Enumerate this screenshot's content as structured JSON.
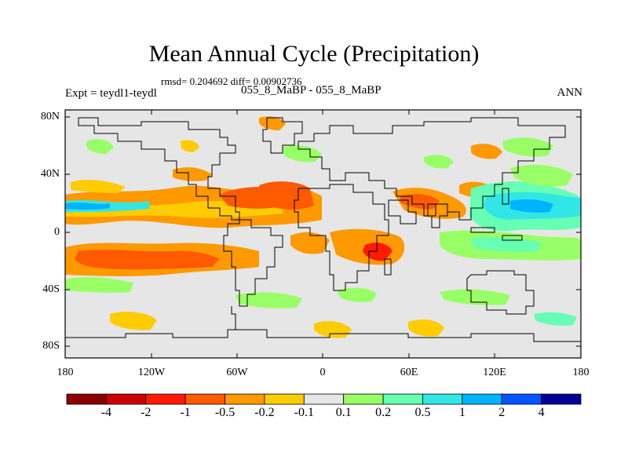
{
  "title": "Mean Annual Cycle (Precipitation)",
  "stats": "rmsd= 0.204692 diff= 0.00902736",
  "subtitle": "055_8_MaBP - 055_8_MaBP",
  "experiment": "Expt = teydl1-teydl",
  "season": "ANN",
  "map": {
    "lat_ticks": [
      "80N",
      "40N",
      "0",
      "40S",
      "80S"
    ],
    "lon_ticks": [
      "180",
      "120W",
      "60W",
      "0",
      "60E",
      "120E",
      "180"
    ]
  },
  "colorbar": {
    "labels": [
      "-4",
      "-2",
      "-1",
      "-0.5",
      "-0.2",
      "-0.1",
      "0.1",
      "0.2",
      "0.5",
      "1",
      "2",
      "4"
    ],
    "colors": [
      "#8b0000",
      "#cc0000",
      "#ff1a00",
      "#ff5a00",
      "#ff9900",
      "#ffcc00",
      "#e6e6e6",
      "#99ff66",
      "#66ffb3",
      "#33e6e6",
      "#00b3ff",
      "#0055ff",
      "#000099"
    ]
  }
}
